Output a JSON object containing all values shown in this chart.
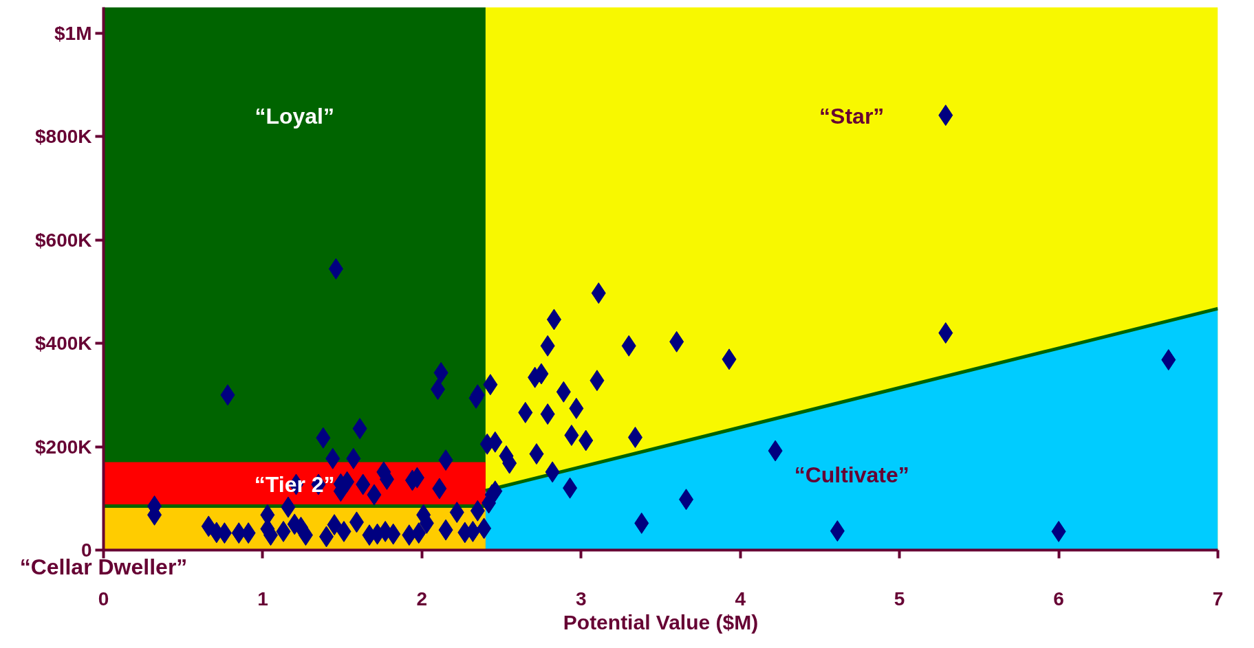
{
  "chart_data": {
    "type": "scatter",
    "xlabel": "Potential Value ($M)",
    "xlim": [
      0,
      7
    ],
    "ylim": [
      0,
      1050000
    ],
    "xticks": [
      0,
      1,
      2,
      3,
      4,
      5,
      6,
      7
    ],
    "yticks": [
      {
        "value": 0,
        "label": "0"
      },
      {
        "value": 200000,
        "label": "$200K"
      },
      {
        "value": 400000,
        "label": "$400K"
      },
      {
        "value": 600000,
        "label": "$600K"
      },
      {
        "value": 800000,
        "label": "$800K"
      },
      {
        "value": 1000000,
        "label": "$1M"
      }
    ],
    "bands": [
      {
        "axis": "x",
        "from": 0,
        "to": 2.4,
        "label": "“Loyal”",
        "color": "#006400"
      },
      {
        "axis": "x",
        "from": 2.4,
        "to": 7,
        "label": "“Star”",
        "color": "#f8f800"
      }
    ],
    "series": [
      {
        "type": "area",
        "name": "“Tier 2”",
        "color": "#ff0000",
        "x": [
          0,
          2.4
        ],
        "values": [
          170000,
          170000
        ]
      },
      {
        "type": "area",
        "name": "“Cellar Dweller”",
        "color": "#ffcc00",
        "line_style": "solid",
        "x": [
          0,
          2.4
        ],
        "values": [
          85000,
          85000
        ]
      },
      {
        "type": "area",
        "name": "“Cultivate”",
        "color": "#00ccff",
        "line_style": "solid",
        "x": [
          2.4,
          7
        ],
        "values": [
          115000,
          467000
        ]
      },
      {
        "marker": "diamond",
        "color": "#000080",
        "x": [
          5.29,
          1.46,
          3.11,
          2.83,
          2.79,
          3.3,
          3.6,
          3.93,
          5.29,
          6.69,
          0.78,
          2.71,
          2.75,
          2.12,
          2.1,
          3.1,
          2.34,
          2.35,
          2.43,
          2.89,
          2.97,
          2.65,
          2.79,
          1.38,
          1.61,
          2.94,
          3.03,
          3.34,
          4.22,
          2.72,
          2.41,
          2.46,
          2.15,
          1.44,
          1.57,
          2.53,
          2.55,
          2.82,
          2.93,
          2.44,
          2.46,
          2.42,
          3.66,
          3.38,
          4.61,
          6.0,
          1.21,
          1.35,
          1.49,
          1.49,
          1.53,
          1.63,
          1.76,
          1.78,
          1.94,
          1.97,
          2.11,
          1.7,
          0.32,
          0.32,
          0.66,
          0.71,
          0.76,
          0.85,
          0.91,
          1.03,
          1.03,
          1.05,
          1.13,
          1.16,
          1.2,
          1.24,
          1.27,
          1.4,
          1.45,
          1.51,
          1.59,
          1.67,
          1.72,
          1.77,
          1.82,
          1.92,
          1.98,
          2.01,
          2.03,
          2.15,
          2.22,
          2.27,
          2.32,
          2.39,
          2.35
        ],
        "values": [
          841000,
          544000,
          497000,
          446000,
          395000,
          395000,
          403000,
          369000,
          420000,
          368000,
          300000,
          334000,
          341000,
          343000,
          311000,
          328000,
          294000,
          300000,
          320000,
          306000,
          274000,
          266000,
          263000,
          217000,
          235000,
          222000,
          212000,
          218000,
          192000,
          186000,
          205000,
          209000,
          174000,
          177000,
          177000,
          182000,
          168000,
          151000,
          120000,
          107000,
          114000,
          91000,
          98000,
          52000,
          37000,
          36000,
          127000,
          127000,
          128000,
          114000,
          132000,
          127000,
          151000,
          137000,
          135000,
          140000,
          119000,
          107000,
          85000,
          68000,
          46000,
          34000,
          33000,
          33000,
          33000,
          68000,
          41000,
          29000,
          36000,
          83000,
          50000,
          44000,
          29000,
          26000,
          49000,
          36000,
          54000,
          29000,
          31000,
          36000,
          31000,
          29000,
          33000,
          68000,
          52000,
          39000,
          73000,
          34000,
          36000,
          42000,
          76000
        ]
      }
    ]
  }
}
